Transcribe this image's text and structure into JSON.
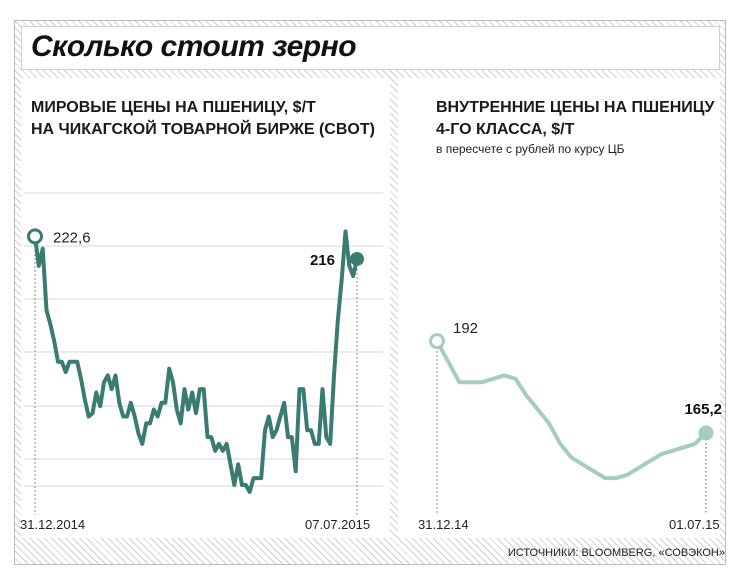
{
  "title": "Сколько стоит зерно",
  "source": "ИСТОЧНИКИ: BLOOMBERG, «СОВЭКОН»",
  "colors": {
    "left_line": "#3a7b72",
    "right_line": "#a6cbc5",
    "grid": "#d9d9d9",
    "text": "#1a1a1a"
  },
  "chart_data": [
    {
      "type": "line",
      "title": "МИРОВЫЕ ЦЕНЫ НА ПШЕНИЦУ, $/Т",
      "subtitle": "НА ЧИКАГСКОЙ ТОВАРНОЙ БИРЖЕ (CBOT)",
      "x_start": "31.12.2014",
      "x_end": "07.07.2015",
      "first_label": "222,6",
      "last_label": "216",
      "ylim": [
        150,
        230
      ],
      "grid": true,
      "values": [
        222.6,
        214,
        219,
        201,
        197,
        192,
        186,
        186,
        183,
        186,
        186,
        186,
        181,
        175,
        170,
        171,
        177,
        173,
        180,
        182,
        178,
        182,
        174,
        170,
        170,
        174,
        170,
        165,
        162,
        168,
        168,
        172,
        170,
        174,
        174,
        184,
        180,
        172,
        168,
        178,
        172,
        177,
        171,
        178,
        178,
        164,
        164,
        160,
        162,
        160,
        162,
        156,
        150,
        156,
        150,
        150,
        148,
        152,
        152,
        152,
        166,
        170,
        164,
        166,
        170,
        174,
        164,
        164,
        154,
        178,
        178,
        166,
        166,
        162,
        162,
        178,
        164,
        162,
        182,
        198,
        210,
        224,
        214,
        211,
        216
      ]
    },
    {
      "type": "line",
      "title": "ВНУТРЕННИЕ ЦЕНЫ НА ПШЕНИЦУ",
      "title2": "4-ГО КЛАССА, $/Т",
      "subtitle": "в пересчете с рублей по курсу ЦБ",
      "x_start": "31.12.14",
      "x_end": "01.07.15",
      "first_label": "192",
      "last_label": "165,2",
      "ylim": [
        150,
        230
      ],
      "grid": false,
      "values": [
        192,
        186,
        180,
        180,
        180,
        181,
        182,
        181,
        176,
        172,
        168,
        162,
        158,
        156,
        154,
        152,
        152,
        153,
        155,
        157,
        159,
        160,
        161,
        162,
        165.2
      ]
    }
  ]
}
